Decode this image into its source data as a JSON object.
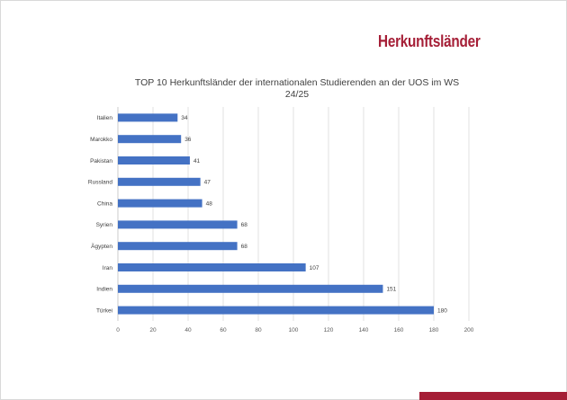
{
  "header": {
    "brand_title": "Herkunftsländer",
    "brand_color": "#a51e36"
  },
  "chart_data": {
    "type": "bar",
    "orientation": "horizontal",
    "title": "TOP 10 Herkunftsländer der internationalen Studierenden an der UOS im WS 24/25",
    "title_lines": [
      "TOP 10 Herkunftsländer der internationalen Studierenden an der UOS im WS",
      "24/25"
    ],
    "categories": [
      "Italien",
      "Marokko",
      "Pakistan",
      "Russland",
      "China",
      "Syrien",
      "Ägypten",
      "Iran",
      "Indien",
      "Türkei"
    ],
    "values": [
      34,
      36,
      41,
      47,
      48,
      68,
      68,
      107,
      151,
      180
    ],
    "xlim": [
      0,
      200
    ],
    "xticks": [
      0,
      20,
      40,
      60,
      80,
      100,
      120,
      140,
      160,
      180,
      200
    ],
    "xlabel": "",
    "ylabel": "",
    "grid": true,
    "data_labels": true,
    "bar_color": "#4472c4"
  }
}
